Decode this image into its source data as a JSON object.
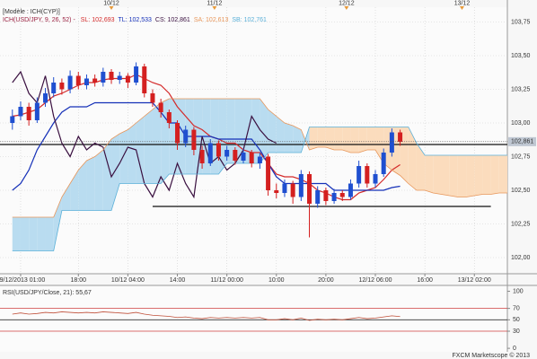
{
  "chart_data": [
    {
      "type": "candlestick",
      "legend_title": "[Modèle : ICH(CYP)]",
      "indicator_label": "ICH(USD/JPY, 9, 26, 52) -",
      "xlim": [
        -1.5,
        60
      ],
      "ylim": [
        101.88,
        103.86
      ],
      "xticks": [
        {
          "value": 1,
          "label": "09/12/2013 01:00"
        },
        {
          "value": 8,
          "label": "18:00"
        },
        {
          "value": 14,
          "label": "10/12 04:00"
        },
        {
          "value": 20,
          "label": "14:00"
        },
        {
          "value": 26,
          "label": "11/12 00:00"
        },
        {
          "value": 32,
          "label": "10:00"
        },
        {
          "value": 38,
          "label": "20:00"
        },
        {
          "value": 44,
          "label": "12/12 06:00"
        },
        {
          "value": 50,
          "label": "16:00"
        },
        {
          "value": 56,
          "label": "13/12 02:00"
        }
      ],
      "date_markers": [
        {
          "value": 12,
          "label": "10/12"
        },
        {
          "value": 24.5,
          "label": "11/12"
        },
        {
          "value": 40.5,
          "label": "12/12"
        },
        {
          "value": 54.5,
          "label": "13/12"
        }
      ],
      "yticks": [
        {
          "value": 103.75,
          "label": "103,75"
        },
        {
          "value": 103.5,
          "label": "103,50"
        },
        {
          "value": 103.25,
          "label": "103,25"
        },
        {
          "value": 103,
          "label": "103,00"
        },
        {
          "value": 102.75,
          "label": "102,75"
        },
        {
          "value": 102.5,
          "label": "102,50"
        },
        {
          "value": 102.25,
          "label": "102,25"
        },
        {
          "value": 102,
          "label": "102,00"
        }
      ],
      "grid": true,
      "up_color": "#1f4fd0",
      "down_color": "#d42020",
      "cloud_up_color": "#b9dcf0",
      "cloud_down_color": "#fbdcbd",
      "open": [
        103.0,
        103.05,
        103.12,
        103.02,
        103.15,
        103.22,
        103.3,
        103.25,
        103.35,
        103.28,
        103.33,
        103.3,
        103.38,
        103.32,
        103.35,
        103.3,
        103.42,
        103.22,
        103.15,
        103.08,
        103.0,
        102.85,
        102.95,
        102.8,
        102.7,
        102.85,
        102.75,
        102.8,
        102.72,
        102.78,
        102.7,
        102.75,
        102.5,
        102.48,
        102.55,
        102.45,
        102.62,
        102.4,
        102.5,
        102.42,
        102.48,
        102.45,
        102.55,
        102.68,
        102.55,
        102.62,
        102.78,
        102.93
      ],
      "high": [
        103.1,
        103.16,
        103.15,
        103.19,
        103.26,
        103.34,
        103.33,
        103.39,
        103.38,
        103.36,
        103.36,
        103.41,
        103.4,
        103.38,
        103.37,
        103.45,
        103.44,
        103.25,
        103.18,
        103.1,
        103.02,
        102.98,
        102.97,
        102.83,
        102.88,
        102.87,
        102.83,
        102.82,
        102.81,
        102.8,
        102.78,
        102.77,
        102.55,
        102.58,
        102.57,
        102.65,
        102.64,
        102.53,
        102.52,
        102.51,
        102.5,
        102.58,
        102.72,
        102.7,
        102.65,
        102.81,
        102.96,
        102.95
      ],
      "low": [
        102.95,
        103.02,
        102.98,
        103.0,
        103.12,
        103.19,
        103.21,
        103.22,
        103.25,
        103.25,
        103.27,
        103.27,
        103.29,
        103.29,
        103.26,
        103.28,
        103.19,
        103.12,
        103.04,
        102.96,
        102.8,
        102.82,
        102.76,
        102.66,
        102.68,
        102.72,
        102.72,
        102.69,
        102.7,
        102.67,
        102.66,
        102.46,
        102.44,
        102.45,
        102.4,
        102.42,
        102.15,
        102.37,
        102.39,
        102.4,
        102.42,
        102.43,
        102.52,
        102.52,
        102.52,
        102.6,
        102.75,
        102.83
      ],
      "close": [
        103.05,
        103.12,
        103.02,
        103.15,
        103.22,
        103.3,
        103.25,
        103.35,
        103.28,
        103.33,
        103.3,
        103.38,
        103.32,
        103.35,
        103.3,
        103.42,
        103.22,
        103.15,
        103.08,
        103.0,
        102.85,
        102.95,
        102.8,
        102.7,
        102.85,
        102.75,
        102.8,
        102.72,
        102.78,
        102.7,
        102.75,
        102.5,
        102.48,
        102.55,
        102.45,
        102.62,
        102.4,
        102.5,
        102.42,
        102.48,
        102.45,
        102.55,
        102.68,
        102.55,
        102.62,
        102.78,
        102.93,
        102.86
      ],
      "series": [
        {
          "name": "SL: 102,693",
          "color": "#d42a2a",
          "values": [
            103.05,
            103.06,
            103.08,
            103.1,
            103.15,
            103.2,
            103.22,
            103.25,
            103.28,
            103.3,
            103.3,
            103.32,
            103.33,
            103.33,
            103.33,
            103.36,
            103.33,
            103.3,
            103.28,
            103.22,
            103.12,
            103.05,
            102.98,
            102.95,
            102.9,
            102.88,
            102.85,
            102.85,
            102.8,
            102.78,
            102.78,
            102.7,
            102.62,
            102.6,
            102.6,
            102.58,
            102.55,
            102.5,
            102.48,
            102.45,
            102.43,
            102.43,
            102.48,
            102.5,
            102.52,
            102.58,
            102.65,
            102.69
          ]
        },
        {
          "name": "TL: 102,533",
          "color": "#1530b8",
          "values": [
            102.5,
            102.55,
            102.65,
            102.8,
            102.9,
            103.0,
            103.08,
            103.12,
            103.12,
            103.12,
            103.15,
            103.15,
            103.15,
            103.15,
            103.15,
            103.15,
            103.15,
            103.15,
            103.08,
            103.0,
            103.0,
            102.9,
            102.9,
            102.9,
            102.9,
            102.88,
            102.88,
            102.88,
            102.88,
            102.88,
            102.8,
            102.7,
            102.6,
            102.55,
            102.55,
            102.55,
            102.55,
            102.55,
            102.55,
            102.5,
            102.5,
            102.5,
            102.5,
            102.5,
            102.5,
            102.5,
            102.52,
            102.53
          ]
        },
        {
          "name": "CS: 102,861",
          "color": "#3a1040",
          "values": [
            103.3,
            103.38,
            103.22,
            103.15,
            103.35,
            103.05,
            102.85,
            102.75,
            102.9,
            102.8,
            102.85,
            102.82,
            102.6,
            102.7,
            102.82,
            102.8,
            102.55,
            102.45,
            102.6,
            102.5,
            102.7,
            102.55,
            102.45,
            102.9,
            102.7,
            102.75,
            102.65,
            102.7,
            102.8,
            103.05,
            102.95,
            102.88,
            102.85
          ]
        },
        {
          "name": "SA: 102,613",
          "color": "#e8965a",
          "values": [
            102.3,
            102.3,
            102.3,
            102.3,
            102.3,
            102.3,
            102.45,
            102.55,
            102.65,
            102.72,
            102.75,
            102.8,
            102.88,
            102.92,
            102.95,
            103.0,
            103.05,
            103.1,
            103.15,
            103.18,
            103.18,
            103.18,
            103.18,
            103.18,
            103.18,
            103.18,
            103.18,
            103.18,
            103.18,
            103.18,
            103.18,
            103.1,
            103.05,
            103.0,
            102.98,
            102.95,
            102.8,
            102.82,
            102.82,
            102.8,
            102.8,
            102.78,
            102.78,
            102.8,
            102.8,
            102.7,
            102.65,
            102.61,
            102.55,
            102.5,
            102.5,
            102.48,
            102.47,
            102.46,
            102.45,
            102.45,
            102.46,
            102.47,
            102.47,
            102.48,
            102.48
          ]
        },
        {
          "name": "SB: 102,761",
          "color": "#5ab0d8",
          "values": [
            102.05,
            102.05,
            102.05,
            102.05,
            102.05,
            102.05,
            102.35,
            102.35,
            102.35,
            102.35,
            102.35,
            102.35,
            102.35,
            102.55,
            102.55,
            102.55,
            102.55,
            102.55,
            102.55,
            102.62,
            102.62,
            102.62,
            102.62,
            102.62,
            102.62,
            102.62,
            102.7,
            102.7,
            102.7,
            102.7,
            102.7,
            102.78,
            102.78,
            102.78,
            102.78,
            102.78,
            102.97,
            102.97,
            102.97,
            102.97,
            102.97,
            102.97,
            102.97,
            102.97,
            102.97,
            102.97,
            102.97,
            102.97,
            102.97,
            102.85,
            102.76,
            102.76,
            102.76,
            102.76,
            102.76,
            102.76,
            102.76,
            102.76,
            102.76,
            102.76,
            102.76
          ]
        }
      ],
      "hlines": [
        102.84
      ],
      "trendline": {
        "x": [
          17,
          58
        ],
        "y": [
          102.38,
          102.38
        ]
      },
      "last_price": {
        "value": 102.861,
        "label": "102,861"
      }
    },
    {
      "type": "line",
      "label": "RSI(USD/JPY/Close, 21): 55,67",
      "color": "#c0503a",
      "xlim": [
        -1.5,
        60
      ],
      "ylim": [
        -3,
        104
      ],
      "yticks": [
        100,
        70,
        50,
        30,
        0
      ],
      "level_lines": [
        {
          "value": 70,
          "color": "#d04040"
        },
        {
          "value": 50,
          "color": "#333333"
        },
        {
          "value": 30,
          "color": "#d04040"
        }
      ],
      "values": [
        60,
        62,
        60,
        61,
        63,
        62,
        64,
        63,
        62,
        63,
        62,
        64,
        63,
        62,
        61,
        63,
        60,
        58,
        57,
        56,
        54,
        55,
        53,
        52,
        54,
        53,
        54,
        53,
        54,
        53,
        54,
        50,
        50,
        52,
        50,
        53,
        49,
        51,
        50,
        51,
        50,
        52,
        54,
        52,
        53,
        55,
        57,
        55.67
      ]
    }
  ],
  "footer": "FXCM Marketscope © 2013"
}
